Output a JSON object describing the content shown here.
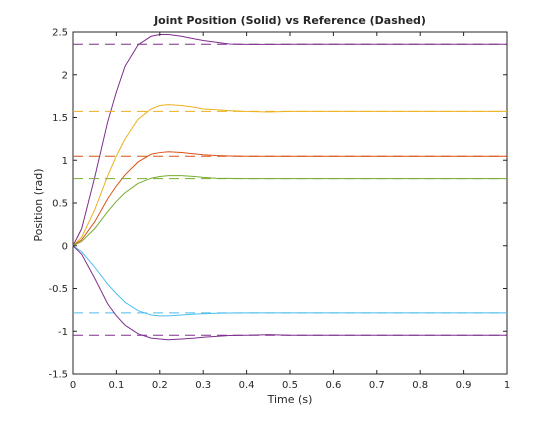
{
  "chart_data": {
    "type": "line",
    "title": "Joint Position (Solid) vs Reference (Dashed)",
    "xlabel": "Time (s)",
    "ylabel": "Position (rad)",
    "xlim": [
      0,
      1
    ],
    "ylim": [
      -1.5,
      2.5
    ],
    "xticks": [
      "0",
      "0.1",
      "0.2",
      "0.3",
      "0.4",
      "0.5",
      "0.6",
      "0.7",
      "0.8",
      "0.9",
      "1"
    ],
    "yticks": [
      "-1.5",
      "-1",
      "-0.5",
      "0",
      "0.5",
      "1",
      "1.5",
      "2",
      "2.5"
    ],
    "grid": false,
    "legend": "none",
    "series": [
      {
        "color": "#7E2F8E",
        "reference": 2.356,
        "x": [
          0,
          0.02,
          0.05,
          0.08,
          0.1,
          0.12,
          0.15,
          0.18,
          0.2,
          0.22,
          0.25,
          0.28,
          0.3,
          0.33,
          0.36,
          0.4,
          0.45,
          0.5,
          1
        ],
        "y": [
          0,
          0.2,
          0.8,
          1.45,
          1.8,
          2.1,
          2.35,
          2.45,
          2.47,
          2.47,
          2.45,
          2.42,
          2.4,
          2.38,
          2.36,
          2.355,
          2.355,
          2.356,
          2.356
        ]
      },
      {
        "color": "#EDB120",
        "reference": 1.571,
        "x": [
          0,
          0.02,
          0.05,
          0.08,
          0.1,
          0.12,
          0.15,
          0.18,
          0.2,
          0.22,
          0.25,
          0.28,
          0.3,
          0.33,
          0.36,
          0.4,
          0.45,
          0.5,
          1
        ],
        "y": [
          0,
          0.1,
          0.42,
          0.82,
          1.05,
          1.25,
          1.48,
          1.6,
          1.64,
          1.65,
          1.64,
          1.62,
          1.6,
          1.59,
          1.58,
          1.57,
          1.565,
          1.571,
          1.571
        ]
      },
      {
        "color": "#D95319",
        "reference": 1.047,
        "x": [
          0,
          0.02,
          0.05,
          0.08,
          0.1,
          0.12,
          0.15,
          0.18,
          0.2,
          0.22,
          0.25,
          0.28,
          0.3,
          0.33,
          0.36,
          0.4,
          0.45,
          0.5,
          1
        ],
        "y": [
          0,
          0.07,
          0.28,
          0.55,
          0.7,
          0.83,
          0.98,
          1.07,
          1.09,
          1.1,
          1.09,
          1.075,
          1.065,
          1.055,
          1.05,
          1.047,
          1.047,
          1.047,
          1.047
        ]
      },
      {
        "color": "#77AC30",
        "reference": 0.785,
        "x": [
          0,
          0.02,
          0.05,
          0.08,
          0.1,
          0.12,
          0.15,
          0.18,
          0.2,
          0.22,
          0.25,
          0.28,
          0.3,
          0.33,
          0.36,
          0.4,
          0.45,
          0.5,
          1
        ],
        "y": [
          0,
          0.05,
          0.2,
          0.4,
          0.52,
          0.62,
          0.73,
          0.79,
          0.81,
          0.82,
          0.82,
          0.81,
          0.8,
          0.79,
          0.788,
          0.785,
          0.785,
          0.785,
          0.785
        ]
      },
      {
        "color": "#4DBEEE",
        "reference": -0.785,
        "x": [
          0,
          0.02,
          0.05,
          0.08,
          0.1,
          0.12,
          0.15,
          0.18,
          0.2,
          0.22,
          0.25,
          0.28,
          0.3,
          0.33,
          0.36,
          0.4,
          0.45,
          0.5,
          1
        ],
        "y": [
          0,
          -0.07,
          -0.25,
          -0.45,
          -0.56,
          -0.66,
          -0.76,
          -0.81,
          -0.82,
          -0.82,
          -0.81,
          -0.8,
          -0.795,
          -0.79,
          -0.787,
          -0.785,
          -0.785,
          -0.785,
          -0.785
        ]
      },
      {
        "color": "#7E2F8E",
        "reference": -1.047,
        "x": [
          0,
          0.02,
          0.05,
          0.08,
          0.1,
          0.12,
          0.15,
          0.18,
          0.2,
          0.22,
          0.25,
          0.28,
          0.3,
          0.33,
          0.36,
          0.4,
          0.45,
          0.5,
          1
        ],
        "y": [
          0,
          -0.1,
          -0.38,
          -0.68,
          -0.82,
          -0.93,
          -1.03,
          -1.08,
          -1.09,
          -1.1,
          -1.09,
          -1.08,
          -1.07,
          -1.06,
          -1.05,
          -1.047,
          -1.04,
          -1.047,
          -1.047
        ]
      }
    ]
  }
}
